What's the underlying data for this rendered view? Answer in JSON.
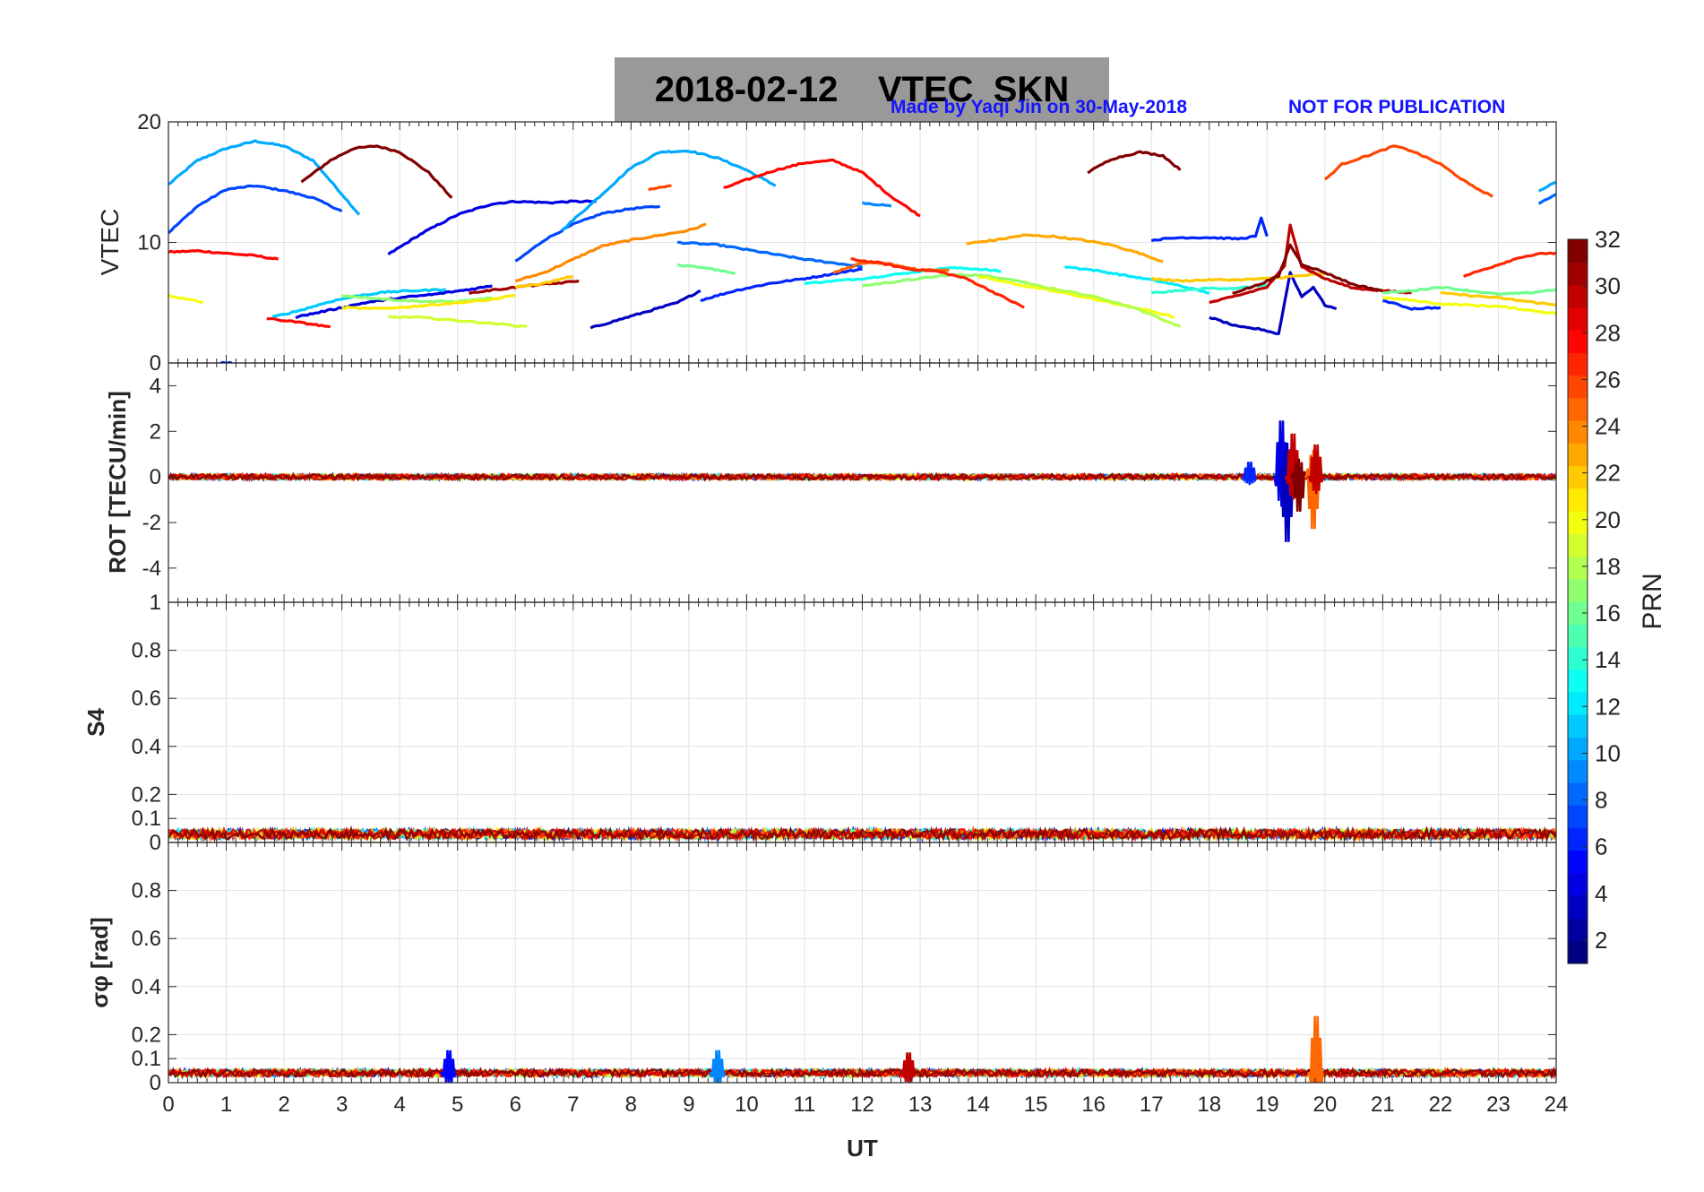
{
  "header": {
    "title": "2018-02-12    VTEC  SKN",
    "credit": "Made by Yaqi Jin on 30-May-2018",
    "notice": "NOT FOR PUBLICATION"
  },
  "colorbar": {
    "label": "PRN",
    "ticks": [
      2,
      4,
      6,
      8,
      10,
      12,
      14,
      16,
      18,
      20,
      22,
      24,
      26,
      28,
      30,
      32
    ],
    "range": [
      1,
      32
    ],
    "colormap": "jet",
    "levels": 32
  },
  "chart_data": [
    {
      "type": "line",
      "panel": "vtec",
      "ylabel": "VTEC",
      "xlim": [
        0,
        24
      ],
      "ylim": [
        0,
        20
      ],
      "yticks": [
        0,
        10,
        20
      ],
      "grid": true,
      "series": [
        {
          "prn": 10,
          "x": [
            0,
            0.5,
            1,
            1.5,
            2,
            2.5,
            3,
            3.3
          ],
          "y": [
            14.8,
            16.8,
            17.8,
            18.4,
            18.0,
            16.8,
            14.0,
            12.3
          ]
        },
        {
          "prn": 7,
          "x": [
            0,
            0.5,
            1,
            1.5,
            2,
            2.5,
            3
          ],
          "y": [
            10.8,
            13.0,
            14.4,
            14.7,
            14.3,
            13.7,
            12.6
          ]
        },
        {
          "prn": 32,
          "x": [
            2.3,
            2.8,
            3.2,
            3.6,
            4.0,
            4.5,
            4.9
          ],
          "y": [
            15.0,
            16.8,
            17.8,
            18.0,
            17.5,
            15.8,
            13.7
          ]
        },
        {
          "prn": 28,
          "x": [
            0,
            0.5,
            1,
            1.5,
            1.9
          ],
          "y": [
            9.2,
            9.3,
            9.1,
            8.9,
            8.6
          ]
        },
        {
          "prn": 20,
          "x": [
            0,
            0.6
          ],
          "y": [
            5.6,
            5.0
          ]
        },
        {
          "prn": 4,
          "x": [
            3.8,
            4.4,
            5.0,
            5.6,
            6.0,
            6.6,
            7.0,
            7.4
          ],
          "y": [
            9.0,
            10.8,
            12.3,
            13.2,
            13.4,
            13.3,
            13.4,
            13.4
          ]
        },
        {
          "prn": 7,
          "x": [
            6.0,
            6.5,
            7.0,
            7.5,
            8.0,
            8.5
          ],
          "y": [
            8.4,
            10.2,
            11.5,
            12.4,
            12.8,
            13.0
          ]
        },
        {
          "prn": 10,
          "x": [
            6.8,
            7.5,
            8.0,
            8.5,
            9.0,
            9.5,
            10.0,
            10.5
          ],
          "y": [
            11.0,
            14.0,
            16.2,
            17.5,
            17.6,
            17.0,
            16.0,
            14.7
          ]
        },
        {
          "prn": 26,
          "x": [
            8.3,
            8.7
          ],
          "y": [
            14.4,
            14.7
          ]
        },
        {
          "prn": 28,
          "x": [
            9.6,
            10.0,
            10.5,
            11.0,
            11.5,
            12.0,
            12.5,
            13.0
          ],
          "y": [
            14.5,
            15.2,
            16.0,
            16.6,
            16.8,
            15.8,
            13.8,
            12.2
          ]
        },
        {
          "prn": 9,
          "x": [
            12.0,
            12.5
          ],
          "y": [
            13.3,
            13.0
          ]
        },
        {
          "prn": 6,
          "x": [
            0.9,
            1.1
          ],
          "y": [
            0,
            0
          ]
        },
        {
          "prn": 24,
          "x": [
            6.0,
            6.5,
            7.0,
            7.5,
            8.0,
            8.5,
            9.0,
            9.3
          ],
          "y": [
            6.8,
            7.5,
            8.6,
            9.7,
            10.2,
            10.6,
            11.0,
            11.5
          ]
        },
        {
          "prn": 8,
          "x": [
            8.8,
            9.5,
            10.0,
            10.5,
            11.0,
            11.5,
            12.0
          ],
          "y": [
            10.0,
            9.8,
            9.4,
            9.0,
            8.6,
            8.3,
            8.0
          ]
        },
        {
          "prn": 16,
          "x": [
            8.8,
            9.3,
            9.8
          ],
          "y": [
            8.1,
            7.9,
            7.4
          ]
        },
        {
          "prn": 3,
          "x": [
            7.3,
            7.8,
            8.3,
            8.8,
            9.2
          ],
          "y": [
            2.9,
            3.6,
            4.3,
            5.0,
            6.0
          ]
        },
        {
          "prn": 6,
          "x": [
            9.2,
            9.8,
            10.4,
            11.0,
            11.5,
            12.0
          ],
          "y": [
            5.2,
            6.0,
            6.6,
            7.0,
            7.4,
            7.8
          ]
        },
        {
          "prn": 13,
          "x": [
            11.0,
            11.5,
            12.0,
            12.5,
            13.0,
            13.5,
            14.0,
            14.4
          ],
          "y": [
            6.6,
            6.8,
            7.0,
            7.3,
            7.6,
            7.9,
            7.8,
            7.6
          ]
        },
        {
          "prn": 17,
          "x": [
            12.0,
            12.5,
            13.0,
            13.5,
            14.0,
            14.5,
            15.0
          ],
          "y": [
            6.4,
            6.7,
            7.0,
            7.3,
            7.3,
            7.0,
            6.5
          ]
        },
        {
          "prn": 25,
          "x": [
            11.5,
            12.0,
            12.5,
            13.0,
            13.5
          ],
          "y": [
            7.5,
            8.3,
            8.2,
            7.7,
            7.7
          ]
        },
        {
          "prn": 27,
          "x": [
            11.8,
            12.3,
            12.8,
            13.3,
            13.8,
            14.3,
            14.8
          ],
          "y": [
            8.6,
            8.3,
            7.8,
            7.6,
            7.0,
            5.8,
            4.6
          ]
        },
        {
          "prn": 23,
          "x": [
            13.8,
            14.3,
            14.8,
            15.3,
            15.8,
            16.3,
            16.8,
            17.2
          ],
          "y": [
            9.9,
            10.2,
            10.6,
            10.5,
            10.2,
            9.8,
            9.1,
            8.4
          ]
        },
        {
          "prn": 20,
          "x": [
            14.0,
            14.8,
            15.5,
            16.2,
            17.0,
            17.4
          ],
          "y": [
            7.2,
            6.4,
            5.8,
            5.1,
            4.3,
            3.8
          ]
        },
        {
          "prn": 18,
          "x": [
            14.8,
            15.5,
            16.2,
            16.8,
            17.5
          ],
          "y": [
            6.6,
            6.0,
            5.3,
            4.4,
            3.0
          ]
        },
        {
          "prn": 12,
          "x": [
            15.5,
            16.0,
            16.5,
            17.0,
            17.5,
            18.0
          ],
          "y": [
            8.0,
            7.7,
            7.3,
            6.9,
            6.4,
            5.8
          ]
        },
        {
          "prn": 32,
          "x": [
            15.9,
            16.3,
            16.8,
            17.2,
            17.5
          ],
          "y": [
            15.8,
            16.9,
            17.5,
            17.2,
            16.0
          ]
        },
        {
          "prn": 6,
          "x": [
            17.0,
            17.5,
            18.0,
            18.5,
            18.8,
            18.9,
            19.0
          ],
          "y": [
            10.2,
            10.4,
            10.4,
            10.3,
            10.5,
            12.0,
            10.5
          ]
        },
        {
          "prn": 3,
          "x": [
            18.0,
            18.5,
            18.9,
            19.2,
            19.4,
            19.6,
            19.8,
            20.0,
            20.2
          ],
          "y": [
            3.8,
            3.0,
            2.8,
            2.4,
            7.5,
            5.5,
            6.3,
            4.8,
            4.5
          ]
        },
        {
          "prn": 22,
          "x": [
            17.0,
            17.5,
            18.0,
            18.5,
            19.0,
            19.5,
            20.0
          ],
          "y": [
            7.0,
            6.8,
            6.9,
            6.9,
            7.0,
            7.2,
            7.4
          ]
        },
        {
          "prn": 14,
          "x": [
            17.0,
            17.5,
            18.0,
            18.5,
            19.0
          ],
          "y": [
            5.8,
            6.0,
            6.2,
            6.2,
            6.5
          ]
        },
        {
          "prn": 30,
          "x": [
            18.0,
            18.5,
            19.0,
            19.3,
            19.4,
            19.6,
            20.0,
            20.5,
            21.0,
            21.5
          ],
          "y": [
            5.0,
            5.6,
            6.3,
            8.0,
            11.5,
            8.0,
            7.0,
            6.2,
            6.0,
            5.8
          ]
        },
        {
          "prn": 32,
          "x": [
            18.4,
            18.8,
            19.2,
            19.4,
            19.6,
            20.0,
            20.5,
            21.0
          ],
          "y": [
            5.8,
            6.4,
            7.2,
            9.8,
            8.2,
            7.5,
            6.5,
            6.0
          ]
        },
        {
          "prn": 26,
          "x": [
            20.0,
            20.3,
            20.8,
            21.2,
            21.5,
            22.0,
            22.5,
            22.9
          ],
          "y": [
            15.2,
            16.5,
            17.3,
            18.0,
            17.6,
            16.5,
            14.8,
            13.8
          ]
        },
        {
          "prn": 6,
          "x": [
            21.0,
            21.5,
            22.0
          ],
          "y": [
            5.2,
            4.5,
            4.6
          ]
        },
        {
          "prn": 16,
          "x": [
            21.0,
            21.5,
            22.0,
            22.5,
            23.0,
            23.5,
            24.0
          ],
          "y": [
            5.8,
            6.0,
            6.3,
            6.0,
            5.7,
            5.8,
            6.1
          ]
        },
        {
          "prn": 20,
          "x": [
            21.0,
            21.5,
            22.0,
            22.5,
            23.0,
            23.5,
            24.0
          ],
          "y": [
            5.4,
            5.2,
            4.9,
            4.8,
            4.7,
            4.4,
            4.1
          ]
        },
        {
          "prn": 27,
          "x": [
            22.4,
            22.9,
            23.4,
            23.8,
            24.0
          ],
          "y": [
            7.2,
            8.0,
            8.8,
            9.1,
            9.1
          ]
        },
        {
          "prn": 22,
          "x": [
            22.0,
            22.5,
            23.0,
            23.5,
            24.0
          ],
          "y": [
            5.8,
            5.6,
            5.4,
            5.1,
            4.8
          ]
        },
        {
          "prn": 10,
          "x": [
            23.7,
            24.0
          ],
          "y": [
            14.3,
            15.0
          ]
        },
        {
          "prn": 8,
          "x": [
            23.7,
            24.0
          ],
          "y": [
            13.2,
            14.0
          ]
        },
        {
          "prn": 28,
          "x": [
            1.7,
            2.2,
            2.8
          ],
          "y": [
            3.7,
            3.4,
            3.0
          ]
        },
        {
          "prn": 11,
          "x": [
            1.8,
            2.3,
            2.8,
            3.3,
            3.8,
            4.3,
            4.8
          ],
          "y": [
            3.8,
            4.4,
            5.1,
            5.6,
            5.9,
            6.0,
            6.1
          ]
        },
        {
          "prn": 4,
          "x": [
            2.2,
            2.8,
            3.4,
            4.0,
            4.6,
            5.2,
            5.6
          ],
          "y": [
            3.8,
            4.4,
            5.0,
            5.4,
            5.7,
            6.1,
            6.4
          ]
        },
        {
          "prn": 17,
          "x": [
            3.0,
            3.5,
            4.0,
            4.5,
            5.0,
            5.6
          ],
          "y": [
            5.6,
            5.4,
            5.2,
            5.1,
            5.1,
            5.4
          ]
        },
        {
          "prn": 21,
          "x": [
            3.0,
            3.5,
            4.0,
            4.5,
            5.0,
            5.5,
            6.0
          ],
          "y": [
            4.6,
            4.5,
            4.6,
            4.8,
            5.0,
            5.2,
            5.6
          ]
        },
        {
          "prn": 19,
          "x": [
            3.8,
            4.3,
            4.8,
            5.3,
            5.8,
            6.2
          ],
          "y": [
            3.8,
            3.8,
            3.6,
            3.4,
            3.2,
            3.0
          ]
        },
        {
          "prn": 31,
          "x": [
            5.2,
            5.7,
            6.2,
            6.7,
            7.1
          ],
          "y": [
            5.8,
            6.1,
            6.4,
            6.6,
            6.8
          ]
        },
        {
          "prn": 22,
          "x": [
            6.0,
            6.5,
            7.0
          ],
          "y": [
            6.3,
            6.6,
            7.2
          ]
        }
      ]
    },
    {
      "type": "line",
      "panel": "rot",
      "ylabel": "ROT [TECU/min]",
      "xlim": [
        0,
        24
      ],
      "ylim": [
        -5.5,
        5
      ],
      "yticks": [
        -4,
        -2,
        0,
        2,
        4
      ],
      "grid": false,
      "baseline": 0,
      "noise_amplitude": 0.12,
      "spikes": [
        {
          "x": 19.25,
          "y": 2.6,
          "prn": 4
        },
        {
          "x": 19.35,
          "y": -3.0,
          "prn": 3
        },
        {
          "x": 19.45,
          "y": 2.0,
          "prn": 30
        },
        {
          "x": 19.55,
          "y": -1.6,
          "prn": 32
        },
        {
          "x": 19.8,
          "y": -2.4,
          "prn": 25
        },
        {
          "x": 19.85,
          "y": 1.5,
          "prn": 30
        },
        {
          "x": 18.7,
          "y": 0.7,
          "prn": 6
        }
      ]
    },
    {
      "type": "line",
      "panel": "s4",
      "ylabel": "S4",
      "xlim": [
        0,
        24
      ],
      "ylim": [
        0,
        1
      ],
      "yticks": [
        0,
        0.1,
        0.2,
        0.4,
        0.6,
        0.8,
        1
      ],
      "grid": true,
      "baseline": 0.035,
      "noise_amplitude": 0.02
    },
    {
      "type": "line",
      "panel": "sigma_phi",
      "ylabel": "σφ [rad]",
      "xlabel": "UT",
      "xlim": [
        0,
        24
      ],
      "ylim": [
        0,
        1
      ],
      "yticks": [
        0,
        0.1,
        0.2,
        0.4,
        0.6,
        0.8
      ],
      "xticks": [
        0,
        1,
        2,
        3,
        4,
        5,
        6,
        7,
        8,
        9,
        10,
        11,
        12,
        13,
        14,
        15,
        16,
        17,
        18,
        19,
        20,
        21,
        22,
        23,
        24
      ],
      "grid": true,
      "baseline": 0.04,
      "noise_amplitude": 0.015,
      "spikes": [
        {
          "x": 19.85,
          "y": 0.25,
          "prn": 25
        },
        {
          "x": 4.85,
          "y": 0.1,
          "prn": 5
        },
        {
          "x": 9.5,
          "y": 0.1,
          "prn": 9
        },
        {
          "x": 12.8,
          "y": 0.09,
          "prn": 30
        }
      ]
    }
  ]
}
